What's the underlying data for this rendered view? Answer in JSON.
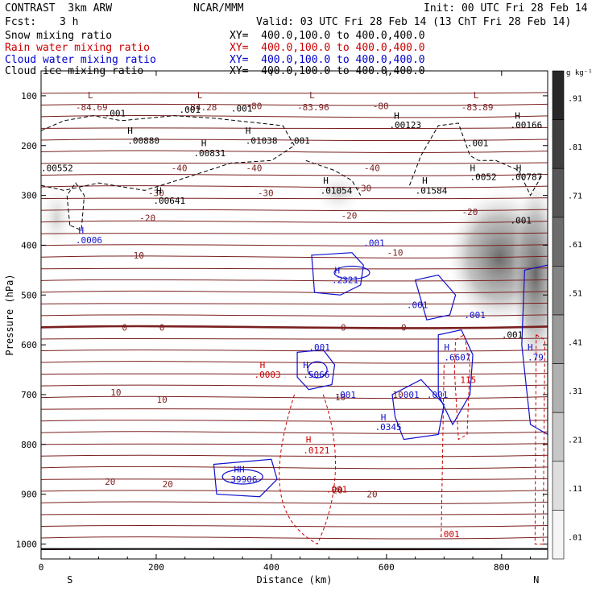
{
  "header": {
    "model_name": "CONTRAST  3km ARW",
    "center": "NCAR/MMM",
    "init": "Init: 00 UTC Fri 28 Feb 14",
    "fcst_label": "Fcst:",
    "fcst_value": "3 h",
    "valid": "Valid: 03 UTC Fri 28 Feb 14 (13 ChT Fri 28 Feb 14)",
    "fields": [
      {
        "name": "Snow mixing ratio",
        "xy": "XY=  400.0,100.0 to 400.0,400.0",
        "color": "#000000"
      },
      {
        "name": "Rain water mixing ratio",
        "xy": "XY=  400.0,100.0 to 400.0,400.0",
        "color": "#cc0000"
      },
      {
        "name": "Cloud water mixing ratio",
        "xy": "XY=  400.0,100.0 to 400.0,400.0",
        "color": "#0000cc"
      },
      {
        "name": "Cloud ice mixing ratio",
        "xy": "XY=  400.0,100.0 to 400.0,400.0",
        "color": "#000000"
      }
    ]
  },
  "chart_data": {
    "type": "cross-section",
    "xlabel": "Distance (km)",
    "ylabel": "Pressure (hPa)",
    "xlim": [
      0,
      880
    ],
    "ylim": [
      1030,
      50
    ],
    "x_ticks": [
      0,
      200,
      400,
      600,
      800
    ],
    "y_ticks": [
      100,
      200,
      300,
      400,
      500,
      600,
      700,
      800,
      900,
      1000
    ],
    "left_end_label": "S",
    "right_end_label": "N",
    "colorbar": {
      "unit": "g kg⁻¹",
      "levels": [
        ".91",
        ".81",
        ".71",
        ".61",
        ".51",
        ".41",
        ".31",
        ".21",
        ".11",
        ".01"
      ]
    },
    "temperature_contours": [
      {
        "label": "-80",
        "label_points": [
          [
            370,
            120
          ],
          [
            590,
            120
          ]
        ]
      },
      {
        "label": "-40",
        "label_points": [
          [
            240,
            245
          ],
          [
            370,
            245
          ],
          [
            575,
            245
          ]
        ]
      },
      {
        "label": "-30",
        "label_points": [
          [
            200,
            295
          ],
          [
            390,
            295
          ],
          [
            560,
            285
          ]
        ]
      },
      {
        "label": "-20",
        "label_points": [
          [
            185,
            345
          ],
          [
            535,
            340
          ],
          [
            745,
            333
          ]
        ]
      },
      {
        "label": "-10",
        "label_points": [
          [
            165,
            420
          ],
          [
            615,
            415
          ]
        ]
      },
      {
        "label": "0",
        "label_points": [
          [
            145,
            565
          ],
          [
            210,
            565
          ],
          [
            525,
            565
          ],
          [
            630,
            565
          ]
        ]
      },
      {
        "label": "10",
        "label_points": [
          [
            130,
            695
          ],
          [
            210,
            710
          ],
          [
            520,
            705
          ],
          [
            620,
            700
          ]
        ]
      },
      {
        "label": "20",
        "label_points": [
          [
            120,
            875
          ],
          [
            220,
            880
          ],
          [
            515,
            892
          ],
          [
            575,
            900
          ]
        ]
      }
    ],
    "temperature_extrema": [
      {
        "kind": "L",
        "value": "-84.69",
        "x": 60,
        "p": 110
      },
      {
        "kind": "L",
        "value": "-84.28",
        "x": 250,
        "p": 110
      },
      {
        "kind": "L",
        "value": "-83.96",
        "x": 445,
        "p": 110
      },
      {
        "kind": "L",
        "value": "-83.89",
        "x": 730,
        "p": 110
      }
    ],
    "snow_and_ice_labels": [
      {
        "text": ".001",
        "x": 110,
        "p": 135
      },
      {
        "text": ".001",
        "x": 240,
        "p": 128
      },
      {
        "text": ".001",
        "x": 330,
        "p": 125
      },
      {
        "text": ".001",
        "x": 430,
        "p": 190
      },
      {
        "text": ".001",
        "x": 740,
        "p": 195
      },
      {
        "text": ".001",
        "x": 815,
        "p": 350
      },
      {
        "text": ".001",
        "x": 800,
        "p": 580
      },
      {
        "text": "H",
        "x": 150,
        "p": 170
      },
      {
        "text": ".00880",
        "x": 150,
        "p": 190
      },
      {
        "text": "H",
        "x": 278,
        "p": 195
      },
      {
        "text": ".00831",
        "x": 265,
        "p": 215
      },
      {
        "text": "H",
        "x": 355,
        "p": 170
      },
      {
        "text": ".01038",
        "x": 355,
        "p": 190
      },
      {
        "text": "H",
        "x": 613,
        "p": 140
      },
      {
        "text": ".00123",
        "x": 605,
        "p": 158
      },
      {
        "text": "H",
        "x": 823,
        "p": 140
      },
      {
        "text": ".00166",
        "x": 815,
        "p": 158
      },
      {
        "text": ".00552",
        "x": 0,
        "p": 245
      },
      {
        "text": "H",
        "x": 490,
        "p": 270
      },
      {
        "text": ".01054",
        "x": 485,
        "p": 290
      },
      {
        "text": "H",
        "x": 662,
        "p": 270
      },
      {
        "text": ".01584",
        "x": 650,
        "p": 290
      },
      {
        "text": "H",
        "x": 745,
        "p": 245
      },
      {
        "text": ".0052",
        "x": 745,
        "p": 263
      },
      {
        "text": "H",
        "x": 825,
        "p": 245
      },
      {
        "text": ".00787",
        "x": 815,
        "p": 263
      },
      {
        "text": "H",
        "x": 200,
        "p": 290
      },
      {
        "text": ".00641",
        "x": 195,
        "p": 310
      }
    ],
    "rain_labels": [
      {
        "text": "H",
        "x": 380,
        "p": 640
      },
      {
        "text": ".0003",
        "x": 370,
        "p": 660
      },
      {
        "text": "H",
        "x": 460,
        "p": 790
      },
      {
        "text": ".0121",
        "x": 455,
        "p": 812
      },
      {
        "text": ".001",
        "x": 495,
        "p": 890
      },
      {
        "text": ".001",
        "x": 690,
        "p": 980
      },
      {
        "text": "115",
        "x": 728,
        "p": 670
      }
    ],
    "cloud_water_labels": [
      {
        "text": "H",
        "x": 65,
        "p": 370
      },
      {
        "text": ".0006",
        "x": 60,
        "p": 390
      },
      {
        "text": ".001",
        "x": 560,
        "p": 395
      },
      {
        "text": "H",
        "x": 510,
        "p": 450
      },
      {
        "text": ".2321",
        "x": 505,
        "p": 470
      },
      {
        "text": ".001",
        "x": 635,
        "p": 520
      },
      {
        "text": ".001",
        "x": 735,
        "p": 540
      },
      {
        "text": ".001",
        "x": 465,
        "p": 605
      },
      {
        "text": "H",
        "x": 455,
        "p": 640
      },
      {
        "text": ".5066",
        "x": 455,
        "p": 660
      },
      {
        "text": ".001",
        "x": 510,
        "p": 700
      },
      {
        "text": ".001",
        "x": 620,
        "p": 700
      },
      {
        "text": ".001",
        "x": 670,
        "p": 700
      },
      {
        "text": "H",
        "x": 590,
        "p": 745
      },
      {
        "text": ".0345",
        "x": 580,
        "p": 765
      },
      {
        "text": "H",
        "x": 700,
        "p": 605
      },
      {
        "text": ".6607",
        "x": 700,
        "p": 625
      },
      {
        "text": "H",
        "x": 845,
        "p": 605
      },
      {
        "text": ".79",
        "x": 845,
        "p": 625
      },
      {
        "text": "HH",
        "x": 335,
        "p": 850
      },
      {
        "text": ".39906",
        "x": 320,
        "p": 870
      }
    ]
  }
}
